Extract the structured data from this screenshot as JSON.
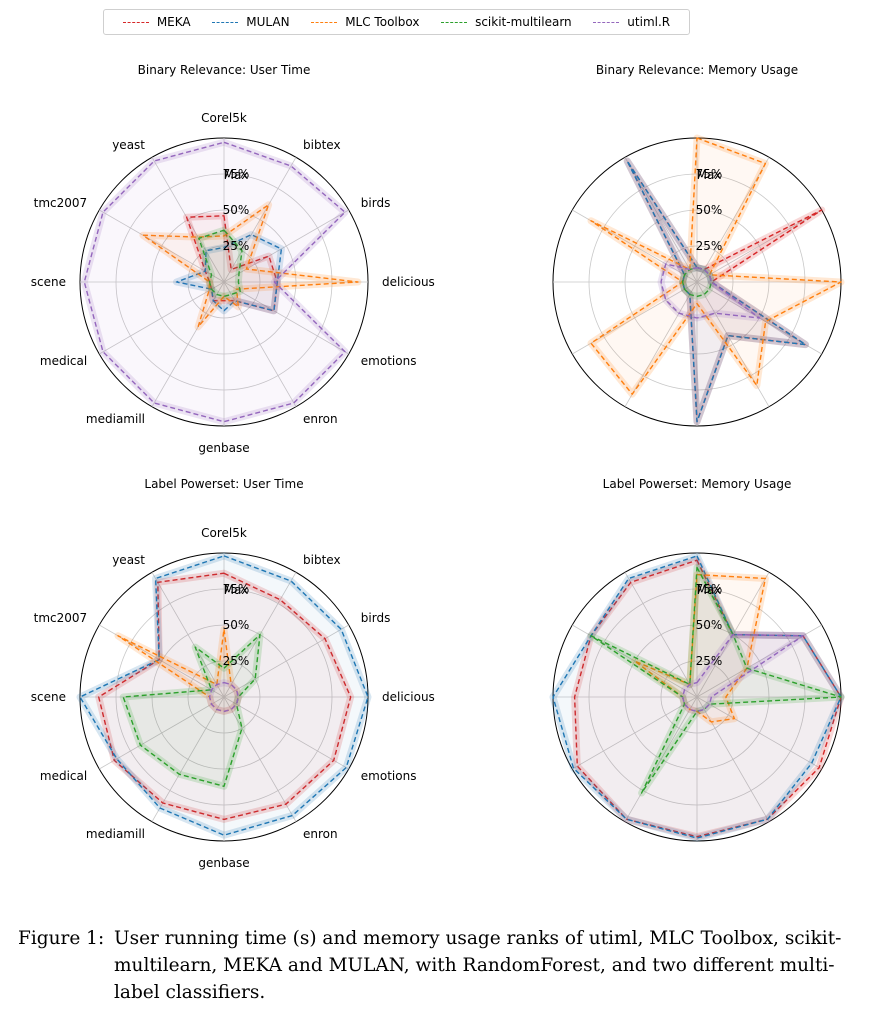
{
  "legend": {
    "items": [
      {
        "name": "MEKA",
        "color": "#d62728"
      },
      {
        "name": "MULAN",
        "color": "#1f77b4"
      },
      {
        "name": "MLC Toolbox",
        "color": "#ff7f0e"
      },
      {
        "name": "scikit-multilearn",
        "color": "#2ca02c"
      },
      {
        "name": "utiml.R",
        "color": "#9467bd"
      }
    ]
  },
  "caption": {
    "label": "Figure 1:",
    "text": "User running time (s) and memory usage ranks of utiml, MLC Toolbox, scikit-multilearn, MEKA and MULAN, with RandomForest, and two different multi-label classifiers."
  },
  "chart_data": [
    {
      "type": "radar",
      "title": "Binary Relevance: User Time",
      "categories": [
        "Corel5k",
        "bibtex",
        "birds",
        "delicious",
        "emotions",
        "enron",
        "genbase",
        "mediamill",
        "medical",
        "scene",
        "tmc2007",
        "yeast"
      ],
      "radial_ticks": [
        "25%",
        "50%",
        "75%",
        "Max"
      ],
      "series": [
        {
          "name": "MEKA",
          "values": [
            46,
            10,
            36,
            37,
            40,
            15,
            13,
            15,
            10,
            10,
            15,
            52
          ]
        },
        {
          "name": "MULAN",
          "values": [
            24,
            38,
            46,
            37,
            40,
            15,
            20,
            15,
            10,
            33,
            15,
            25
          ]
        },
        {
          "name": "MLC Toolbox",
          "values": [
            32,
            62,
            18,
            93,
            10,
            20,
            10,
            36,
            12,
            10,
            65,
            36
          ]
        },
        {
          "name": "scikit-multilearn",
          "values": [
            36,
            25,
            12,
            10,
            13,
            10,
            10,
            10,
            10,
            10,
            10,
            35
          ]
        },
        {
          "name": "utiml.R",
          "values": [
            97,
            93,
            97,
            35,
            97,
            97,
            97,
            97,
            97,
            97,
            97,
            97
          ]
        }
      ]
    },
    {
      "type": "radar",
      "title": "Binary Relevance: Memory Usage",
      "categories": [
        "Corel5k",
        "bibtex",
        "birds",
        "delicious",
        "emotions",
        "enron",
        "genbase",
        "mediamill",
        "medical",
        "scene",
        "tmc2007",
        "yeast"
      ],
      "radial_ticks": [
        "25%",
        "50%",
        "75%",
        "Max"
      ],
      "series": [
        {
          "name": "MEKA",
          "values": [
            10,
            10,
            100,
            10,
            87,
            43,
            97,
            10,
            10,
            10,
            10,
            97
          ]
        },
        {
          "name": "MULAN",
          "values": [
            10,
            10,
            10,
            10,
            87,
            43,
            97,
            10,
            10,
            10,
            10,
            97
          ]
        },
        {
          "name": "MLC Toolbox",
          "values": [
            100,
            95,
            10,
            100,
            55,
            83,
            15,
            90,
            85,
            10,
            85,
            10
          ]
        },
        {
          "name": "scikit-multilearn",
          "values": [
            10,
            10,
            10,
            10,
            10,
            10,
            10,
            10,
            10,
            10,
            10,
            10
          ]
        },
        {
          "name": "utiml.R",
          "values": [
            10,
            10,
            10,
            10,
            50,
            25,
            25,
            25,
            25,
            25,
            25,
            10
          ]
        }
      ]
    },
    {
      "type": "radar",
      "title": "Label Powerset: User Time",
      "categories": [
        "Corel5k",
        "bibtex",
        "birds",
        "delicious",
        "emotions",
        "enron",
        "genbase",
        "mediamill",
        "medical",
        "scene",
        "tmc2007",
        "yeast"
      ],
      "radial_ticks": [
        "25%",
        "50%",
        "75%",
        "Max"
      ],
      "series": [
        {
          "name": "MEKA",
          "values": [
            86,
            78,
            81,
            88,
            88,
            86,
            85,
            85,
            88,
            87,
            52,
            92
          ]
        },
        {
          "name": "MULAN",
          "values": [
            98,
            93,
            94,
            100,
            98,
            95,
            96,
            89,
            86,
            100,
            52,
            95
          ]
        },
        {
          "name": "MLC Toolbox",
          "values": [
            47,
            10,
            10,
            10,
            10,
            10,
            10,
            10,
            10,
            10,
            85,
            10
          ]
        },
        {
          "name": "scikit-multilearn",
          "values": [
            20,
            50,
            25,
            10,
            10,
            25,
            62,
            62,
            67,
            70,
            10,
            40
          ]
        },
        {
          "name": "utiml.R",
          "values": [
            10,
            10,
            10,
            10,
            10,
            10,
            10,
            10,
            10,
            10,
            10,
            10
          ]
        }
      ]
    },
    {
      "type": "radar",
      "title": "Label Powerset: Memory Usage",
      "categories": [
        "Corel5k",
        "bibtex",
        "birds",
        "delicious",
        "emotions",
        "enron",
        "genbase",
        "mediamill",
        "medical",
        "scene",
        "tmc2007",
        "yeast"
      ],
      "radial_ticks": [
        "25%",
        "50%",
        "75%",
        "Max"
      ],
      "series": [
        {
          "name": "MEKA",
          "values": [
            95,
            50,
            85,
            100,
            98,
            98,
            97,
            98,
            96,
            85,
            85,
            92
          ]
        },
        {
          "name": "MULAN",
          "values": [
            98,
            50,
            85,
            100,
            92,
            98,
            98,
            98,
            99,
            100,
            85,
            95
          ]
        },
        {
          "name": "MLC Toolbox",
          "values": [
            85,
            95,
            40,
            20,
            30,
            20,
            10,
            10,
            10,
            10,
            50,
            10
          ]
        },
        {
          "name": "scikit-multilearn",
          "values": [
            90,
            50,
            40,
            100,
            10,
            10,
            10,
            77,
            10,
            10,
            85,
            10
          ]
        },
        {
          "name": "utiml.R",
          "values": [
            10,
            50,
            85,
            10,
            10,
            10,
            10,
            10,
            10,
            10,
            10,
            10
          ]
        }
      ]
    }
  ]
}
